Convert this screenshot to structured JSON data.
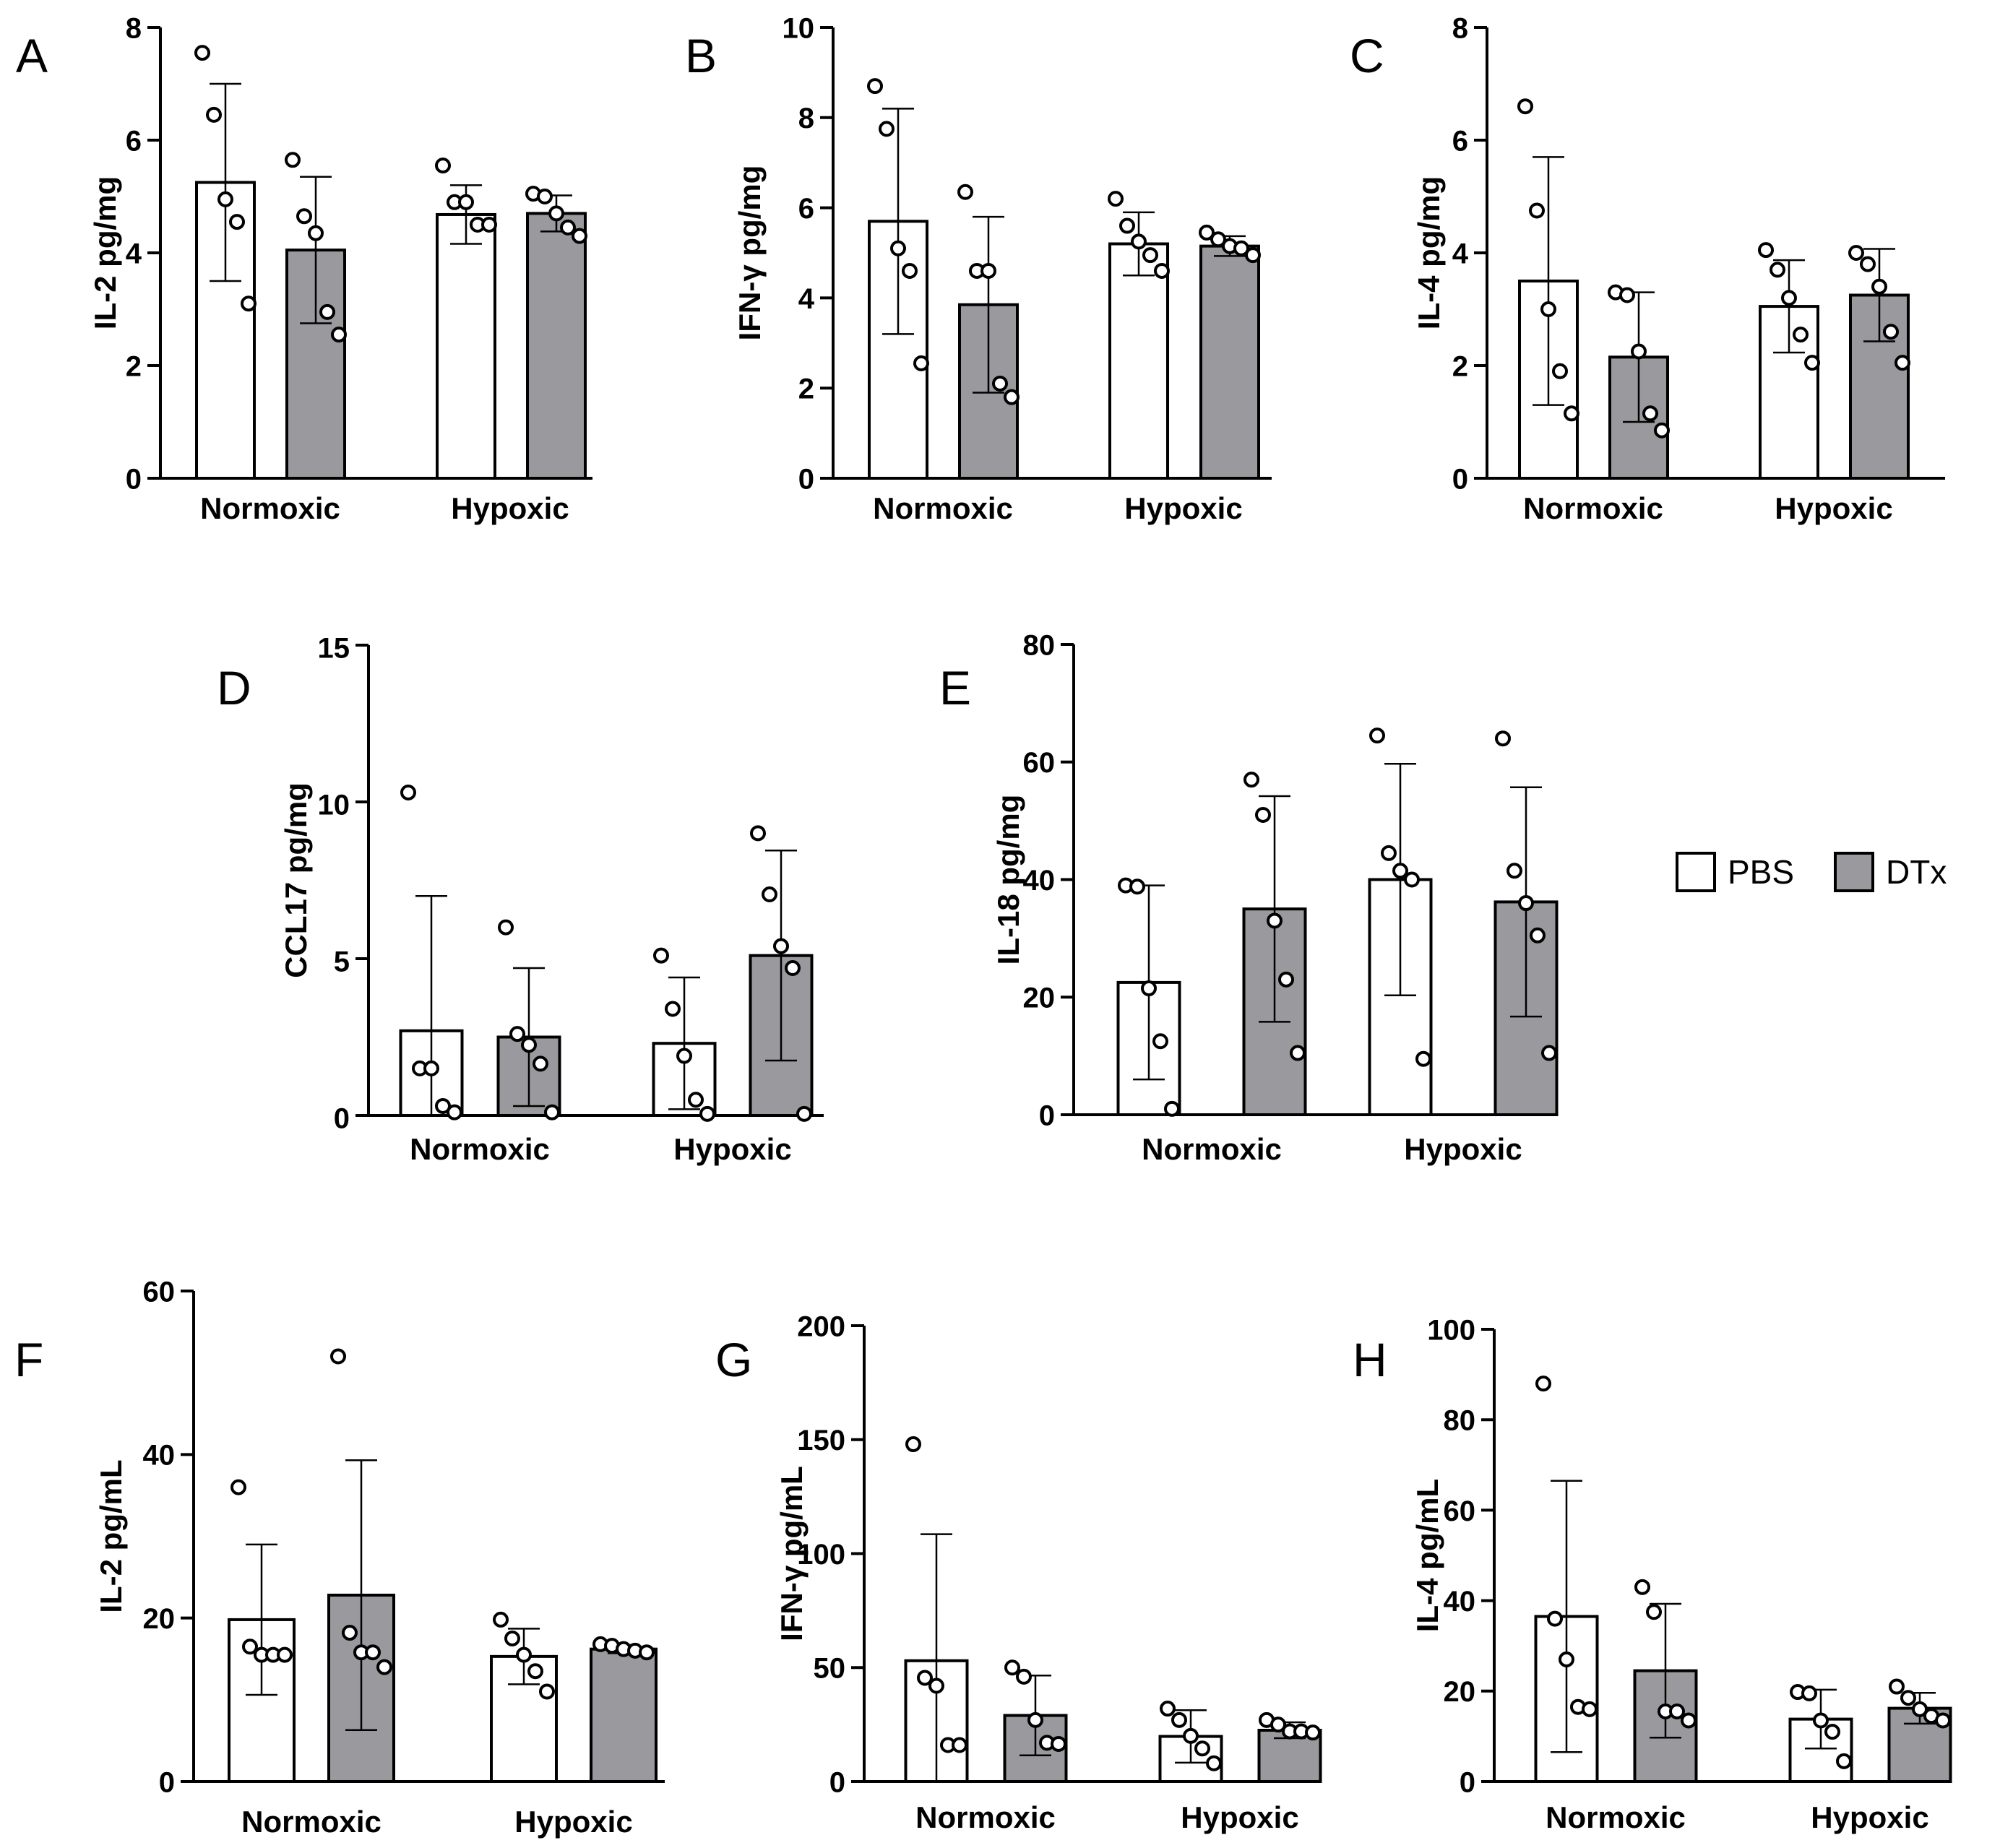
{
  "colors": {
    "pbs": "#ffffff",
    "dtx": "#9a9a9e",
    "stroke": "#000000"
  },
  "legend": [
    {
      "name": "PBS",
      "color": "#ffffff"
    },
    {
      "name": "DTx",
      "color": "#9a9a9e"
    }
  ],
  "chart_data": [
    {
      "panel": "A",
      "type": "bar",
      "ylabel": "IL-2 pg/mg",
      "ylim": [
        0,
        8
      ],
      "yticks": [
        0,
        2,
        4,
        6,
        8
      ],
      "categories": [
        "Normoxic",
        "Hypoxic"
      ],
      "series": [
        {
          "name": "PBS",
          "means": [
            5.25,
            4.68
          ],
          "sd": [
            1.75,
            0.52
          ],
          "points": [
            [
              7.55,
              6.45,
              4.95,
              4.55,
              3.1
            ],
            [
              5.55,
              4.9,
              4.9,
              4.5,
              4.5
            ]
          ]
        },
        {
          "name": "DTx",
          "means": [
            4.05,
            4.7
          ],
          "sd": [
            1.3,
            0.32
          ],
          "points": [
            [
              5.65,
              4.65,
              4.35,
              2.95,
              2.55
            ],
            [
              5.05,
              5.0,
              4.7,
              4.45,
              4.3
            ]
          ]
        }
      ]
    },
    {
      "panel": "B",
      "type": "bar",
      "ylabel": "IFN-γ pg/mg",
      "ylim": [
        0,
        10
      ],
      "yticks": [
        0,
        2,
        4,
        6,
        8,
        10
      ],
      "categories": [
        "Normoxic",
        "Hypoxic"
      ],
      "series": [
        {
          "name": "PBS",
          "means": [
            5.7,
            5.2
          ],
          "sd": [
            2.5,
            0.7
          ],
          "points": [
            [
              8.7,
              7.75,
              5.1,
              4.6,
              2.55
            ],
            [
              6.2,
              5.6,
              5.25,
              4.95,
              4.6
            ]
          ]
        },
        {
          "name": "DTx",
          "means": [
            3.85,
            5.15
          ],
          "sd": [
            1.95,
            0.22
          ],
          "points": [
            [
              6.35,
              4.6,
              4.6,
              2.1,
              1.8
            ],
            [
              5.45,
              5.3,
              5.15,
              5.1,
              4.95
            ]
          ]
        }
      ]
    },
    {
      "panel": "C",
      "type": "bar",
      "ylabel": "IL-4 pg/mg",
      "ylim": [
        0,
        8
      ],
      "yticks": [
        0,
        2,
        4,
        6,
        8
      ],
      "categories": [
        "Normoxic",
        "Hypoxic"
      ],
      "series": [
        {
          "name": "PBS",
          "means": [
            3.5,
            3.05
          ],
          "sd": [
            2.2,
            0.82
          ],
          "points": [
            [
              6.6,
              4.75,
              3.0,
              1.9,
              1.15
            ],
            [
              4.05,
              3.7,
              3.2,
              2.55,
              2.05
            ]
          ]
        },
        {
          "name": "DTx",
          "means": [
            2.15,
            3.25
          ],
          "sd": [
            1.15,
            0.82
          ],
          "points": [
            [
              3.3,
              3.25,
              2.25,
              1.15,
              0.85
            ],
            [
              4.0,
              3.8,
              3.4,
              2.6,
              2.05
            ]
          ]
        }
      ]
    },
    {
      "panel": "D",
      "type": "bar",
      "ylabel": "CCL17 pg/mg",
      "ylim": [
        0,
        15
      ],
      "yticks": [
        0,
        5,
        10,
        15
      ],
      "categories": [
        "Normoxic",
        "Hypoxic"
      ],
      "series": [
        {
          "name": "PBS",
          "means": [
            2.7,
            2.3
          ],
          "sd": [
            4.3,
            2.1
          ],
          "points": [
            [
              10.3,
              1.5,
              1.5,
              0.3,
              0.1
            ],
            [
              5.1,
              3.4,
              1.9,
              0.5,
              0.05
            ]
          ]
        },
        {
          "name": "DTx",
          "means": [
            2.5,
            5.1
          ],
          "sd": [
            2.2,
            3.35
          ],
          "points": [
            [
              6.0,
              2.6,
              2.25,
              1.65,
              0.1
            ],
            [
              9.0,
              7.05,
              5.4,
              4.7,
              0.05
            ]
          ]
        }
      ]
    },
    {
      "panel": "E",
      "type": "bar",
      "ylabel": "IL-18 pg/mg",
      "ylim": [
        0,
        80
      ],
      "yticks": [
        0,
        20,
        40,
        60,
        80
      ],
      "categories": [
        "Normoxic",
        "Hypoxic"
      ],
      "series": [
        {
          "name": "PBS",
          "means": [
            22.5,
            40.0
          ],
          "sd": [
            16.5,
            19.7
          ],
          "points": [
            [
              39.0,
              38.8,
              21.5,
              12.5,
              1.0
            ],
            [
              64.5,
              44.5,
              41.5,
              40.0,
              9.5
            ]
          ]
        },
        {
          "name": "DTx",
          "means": [
            35.0,
            36.2
          ],
          "sd": [
            19.2,
            19.5
          ],
          "points": [
            [
              57.0,
              51.0,
              33.0,
              23.0,
              10.5
            ],
            [
              64.0,
              41.5,
              36.0,
              30.5,
              10.5
            ]
          ]
        }
      ]
    },
    {
      "panel": "F",
      "type": "bar",
      "ylabel": "IL-2 pg/mL",
      "ylim": [
        0,
        60
      ],
      "yticks": [
        0,
        20,
        40,
        60
      ],
      "categories": [
        "Normoxic",
        "Hypoxic"
      ],
      "series": [
        {
          "name": "PBS",
          "means": [
            19.8,
            15.3
          ],
          "sd": [
            9.2,
            3.4
          ],
          "points": [
            [
              36.0,
              16.5,
              15.5,
              15.5,
              15.5
            ],
            [
              19.8,
              17.5,
              15.5,
              13.5,
              11.0
            ]
          ]
        },
        {
          "name": "DTx",
          "means": [
            22.8,
            16.2
          ],
          "sd": [
            16.5,
            0.5
          ],
          "points": [
            [
              52.0,
              18.2,
              15.8,
              15.8,
              14.0
            ],
            [
              16.8,
              16.6,
              16.2,
              16.0,
              15.8
            ]
          ]
        }
      ]
    },
    {
      "panel": "G",
      "type": "bar",
      "ylabel": "IFN-γ pg/mL",
      "ylim": [
        0,
        200
      ],
      "yticks": [
        0,
        50,
        100,
        150,
        200
      ],
      "categories": [
        "Normoxic",
        "Hypoxic"
      ],
      "series": [
        {
          "name": "PBS",
          "means": [
            53.0,
            19.8
          ],
          "sd": [
            55.5,
            11.5
          ],
          "points": [
            [
              148.0,
              45.5,
              42.0,
              16.0,
              16.0
            ],
            [
              32.0,
              27.0,
              20.0,
              14.5,
              8.0
            ]
          ]
        },
        {
          "name": "DTx",
          "means": [
            29.0,
            22.5
          ],
          "sd": [
            17.5,
            3.5
          ],
          "points": [
            [
              50.0,
              46.0,
              27.0,
              17.0,
              16.5
            ],
            [
              27.0,
              25.0,
              22.0,
              22.0,
              21.5
            ]
          ]
        }
      ]
    },
    {
      "panel": "H",
      "type": "bar",
      "ylabel": "IL-4 pg/mL",
      "ylim": [
        0,
        100
      ],
      "yticks": [
        0,
        20,
        40,
        60,
        80,
        100
      ],
      "categories": [
        "Normoxic",
        "Hypoxic"
      ],
      "series": [
        {
          "name": "PBS",
          "means": [
            36.5,
            13.8
          ],
          "sd": [
            30.0,
            6.5
          ],
          "points": [
            [
              88.0,
              36.0,
              27.0,
              16.5,
              16.0
            ],
            [
              19.8,
              19.5,
              13.5,
              11.0,
              4.5
            ]
          ]
        },
        {
          "name": "DTx",
          "means": [
            24.5,
            16.2
          ],
          "sd": [
            14.8,
            3.4
          ],
          "points": [
            [
              43.0,
              37.5,
              15.5,
              15.5,
              13.5
            ],
            [
              21.0,
              18.5,
              16.0,
              14.5,
              13.5
            ]
          ]
        }
      ]
    }
  ]
}
